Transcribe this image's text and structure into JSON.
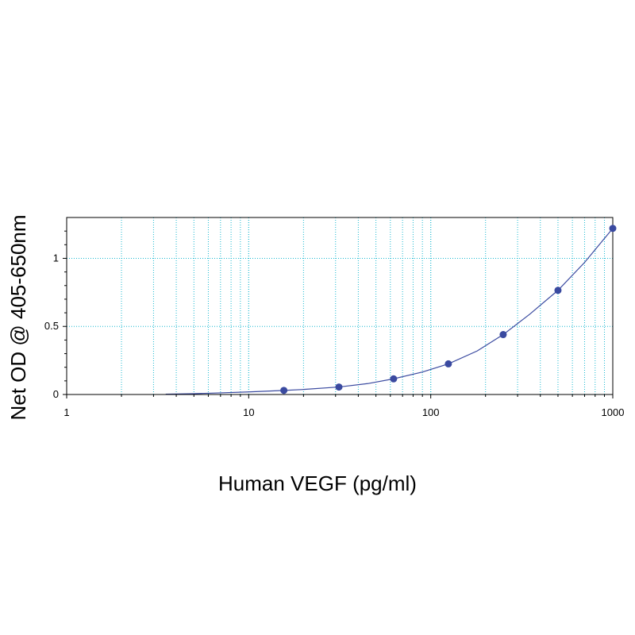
{
  "chart_data": {
    "type": "scatter",
    "title": "",
    "xlabel": "Human VEGF (pg/ml)",
    "ylabel": "Net OD @ 405-650nm",
    "x_scale": "log",
    "xlim": [
      1,
      1000
    ],
    "ylim": [
      0,
      1.3
    ],
    "x_tick_labels": [
      "1",
      "10",
      "100",
      "1000"
    ],
    "x_tick_values": [
      1,
      10,
      100,
      1000
    ],
    "y_tick_labels": [
      "0",
      "0.5",
      "1"
    ],
    "y_tick_values": [
      0,
      0.5,
      1
    ],
    "grid": true,
    "legend": "none",
    "series": [
      {
        "x": [
          15.6,
          31.3,
          62.5,
          125,
          250,
          500,
          1000
        ],
        "y": [
          0.03,
          0.055,
          0.115,
          0.225,
          0.44,
          0.765,
          1.22
        ]
      }
    ],
    "fit_curve": {
      "x": [
        3.5,
        5,
        7,
        10,
        15.6,
        20,
        31.3,
        45,
        62.5,
        90,
        125,
        180,
        250,
        350,
        500,
        700,
        1000
      ],
      "y": [
        0.002,
        0.006,
        0.012,
        0.019,
        0.03,
        0.037,
        0.055,
        0.08,
        0.115,
        0.165,
        0.225,
        0.32,
        0.44,
        0.59,
        0.765,
        0.97,
        1.22
      ]
    },
    "colors": {
      "marker": "#3a4aa0",
      "curve": "#3a4aa0",
      "grid": "#19b8d0",
      "axis": "#000000"
    }
  }
}
